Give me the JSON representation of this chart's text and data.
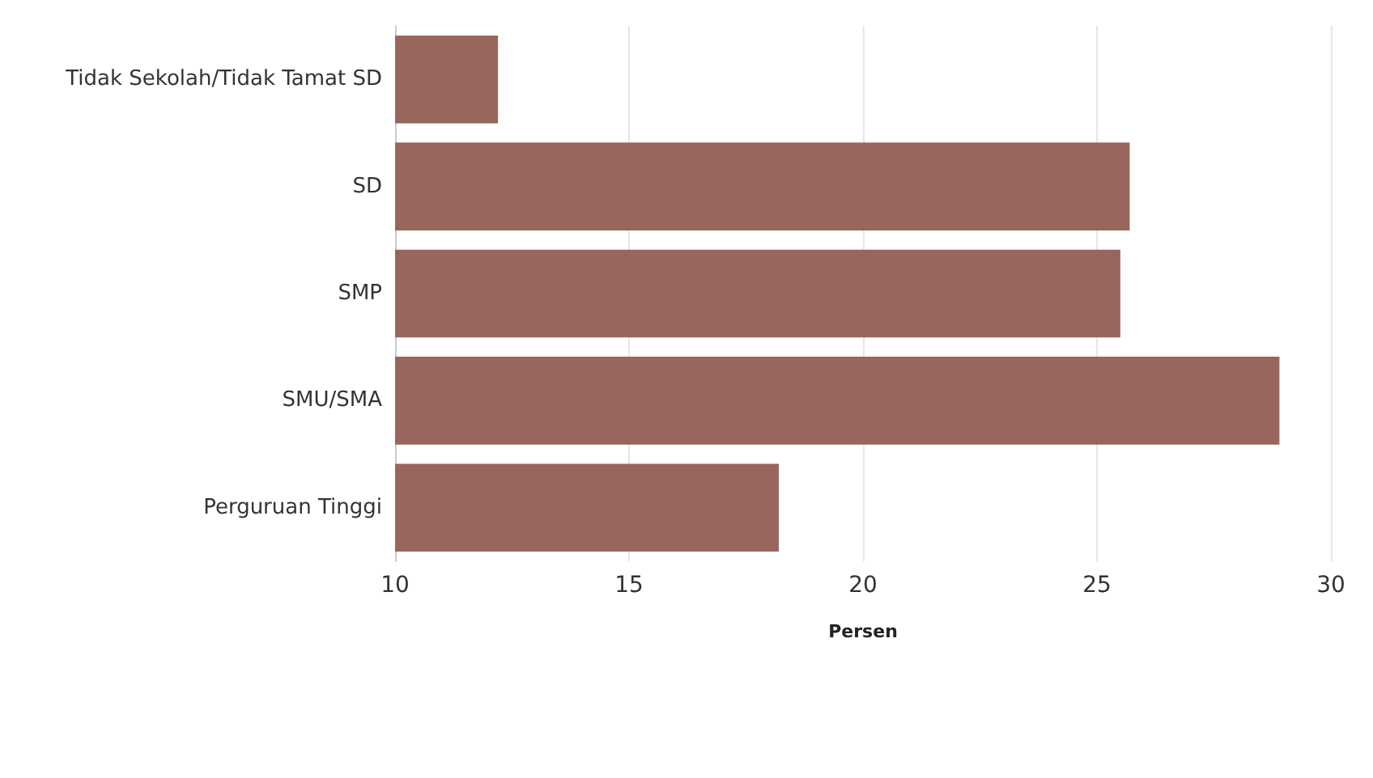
{
  "chart_data": {
    "type": "bar",
    "orientation": "horizontal",
    "xlabel": "Persen",
    "categories": [
      "Tidak Sekolah/Tidak Tamat SD",
      "SD",
      "SMP",
      "SMU/SMA",
      "Perguruan Tinggi"
    ],
    "values": [
      12.2,
      25.7,
      25.5,
      28.9,
      18.2
    ],
    "color": "#98665c",
    "xlim": [
      10,
      30
    ],
    "xticks": [
      10,
      15,
      20,
      25,
      30
    ],
    "grid": "x"
  }
}
